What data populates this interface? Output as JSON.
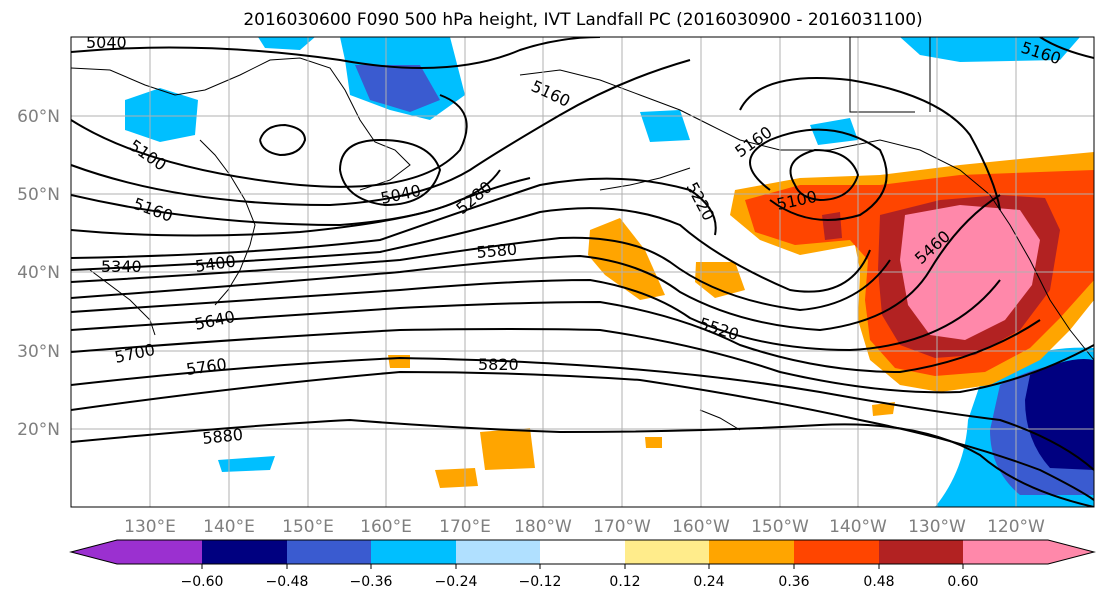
{
  "title": "2016030600 F090 500 hPa height, IVT Landfall PC (2016030900 - 2016031100)",
  "lat_labels": [
    "60°N",
    "50°N",
    "40°N",
    "30°N",
    "20°N"
  ],
  "lon_labels": [
    "130°E",
    "140°E",
    "150°E",
    "160°E",
    "170°E",
    "180°W",
    "170°W",
    "160°W",
    "150°W",
    "140°W",
    "130°W",
    "120°W"
  ],
  "contour_labels": [
    "5040",
    "5100",
    "5160",
    "5340",
    "5400",
    "5640",
    "5700",
    "5760",
    "5880",
    "5040",
    "5160",
    "5280",
    "5580",
    "5820",
    "5220",
    "5520",
    "5160",
    "5100",
    "5460",
    "5160"
  ],
  "colorbar": {
    "colors": [
      "#9b30d0",
      "#000080",
      "#3a5bd0",
      "#00bfff",
      "#b0e0ff",
      "#ffffff",
      "#ffec8b",
      "#ffa500",
      "#ff4500",
      "#b22222",
      "#ff88aa"
    ],
    "tick_labels": [
      "−0.60",
      "−0.48",
      "−0.36",
      "−0.24",
      "−0.12",
      "0.12",
      "0.24",
      "0.36",
      "0.48",
      "0.60"
    ]
  }
}
